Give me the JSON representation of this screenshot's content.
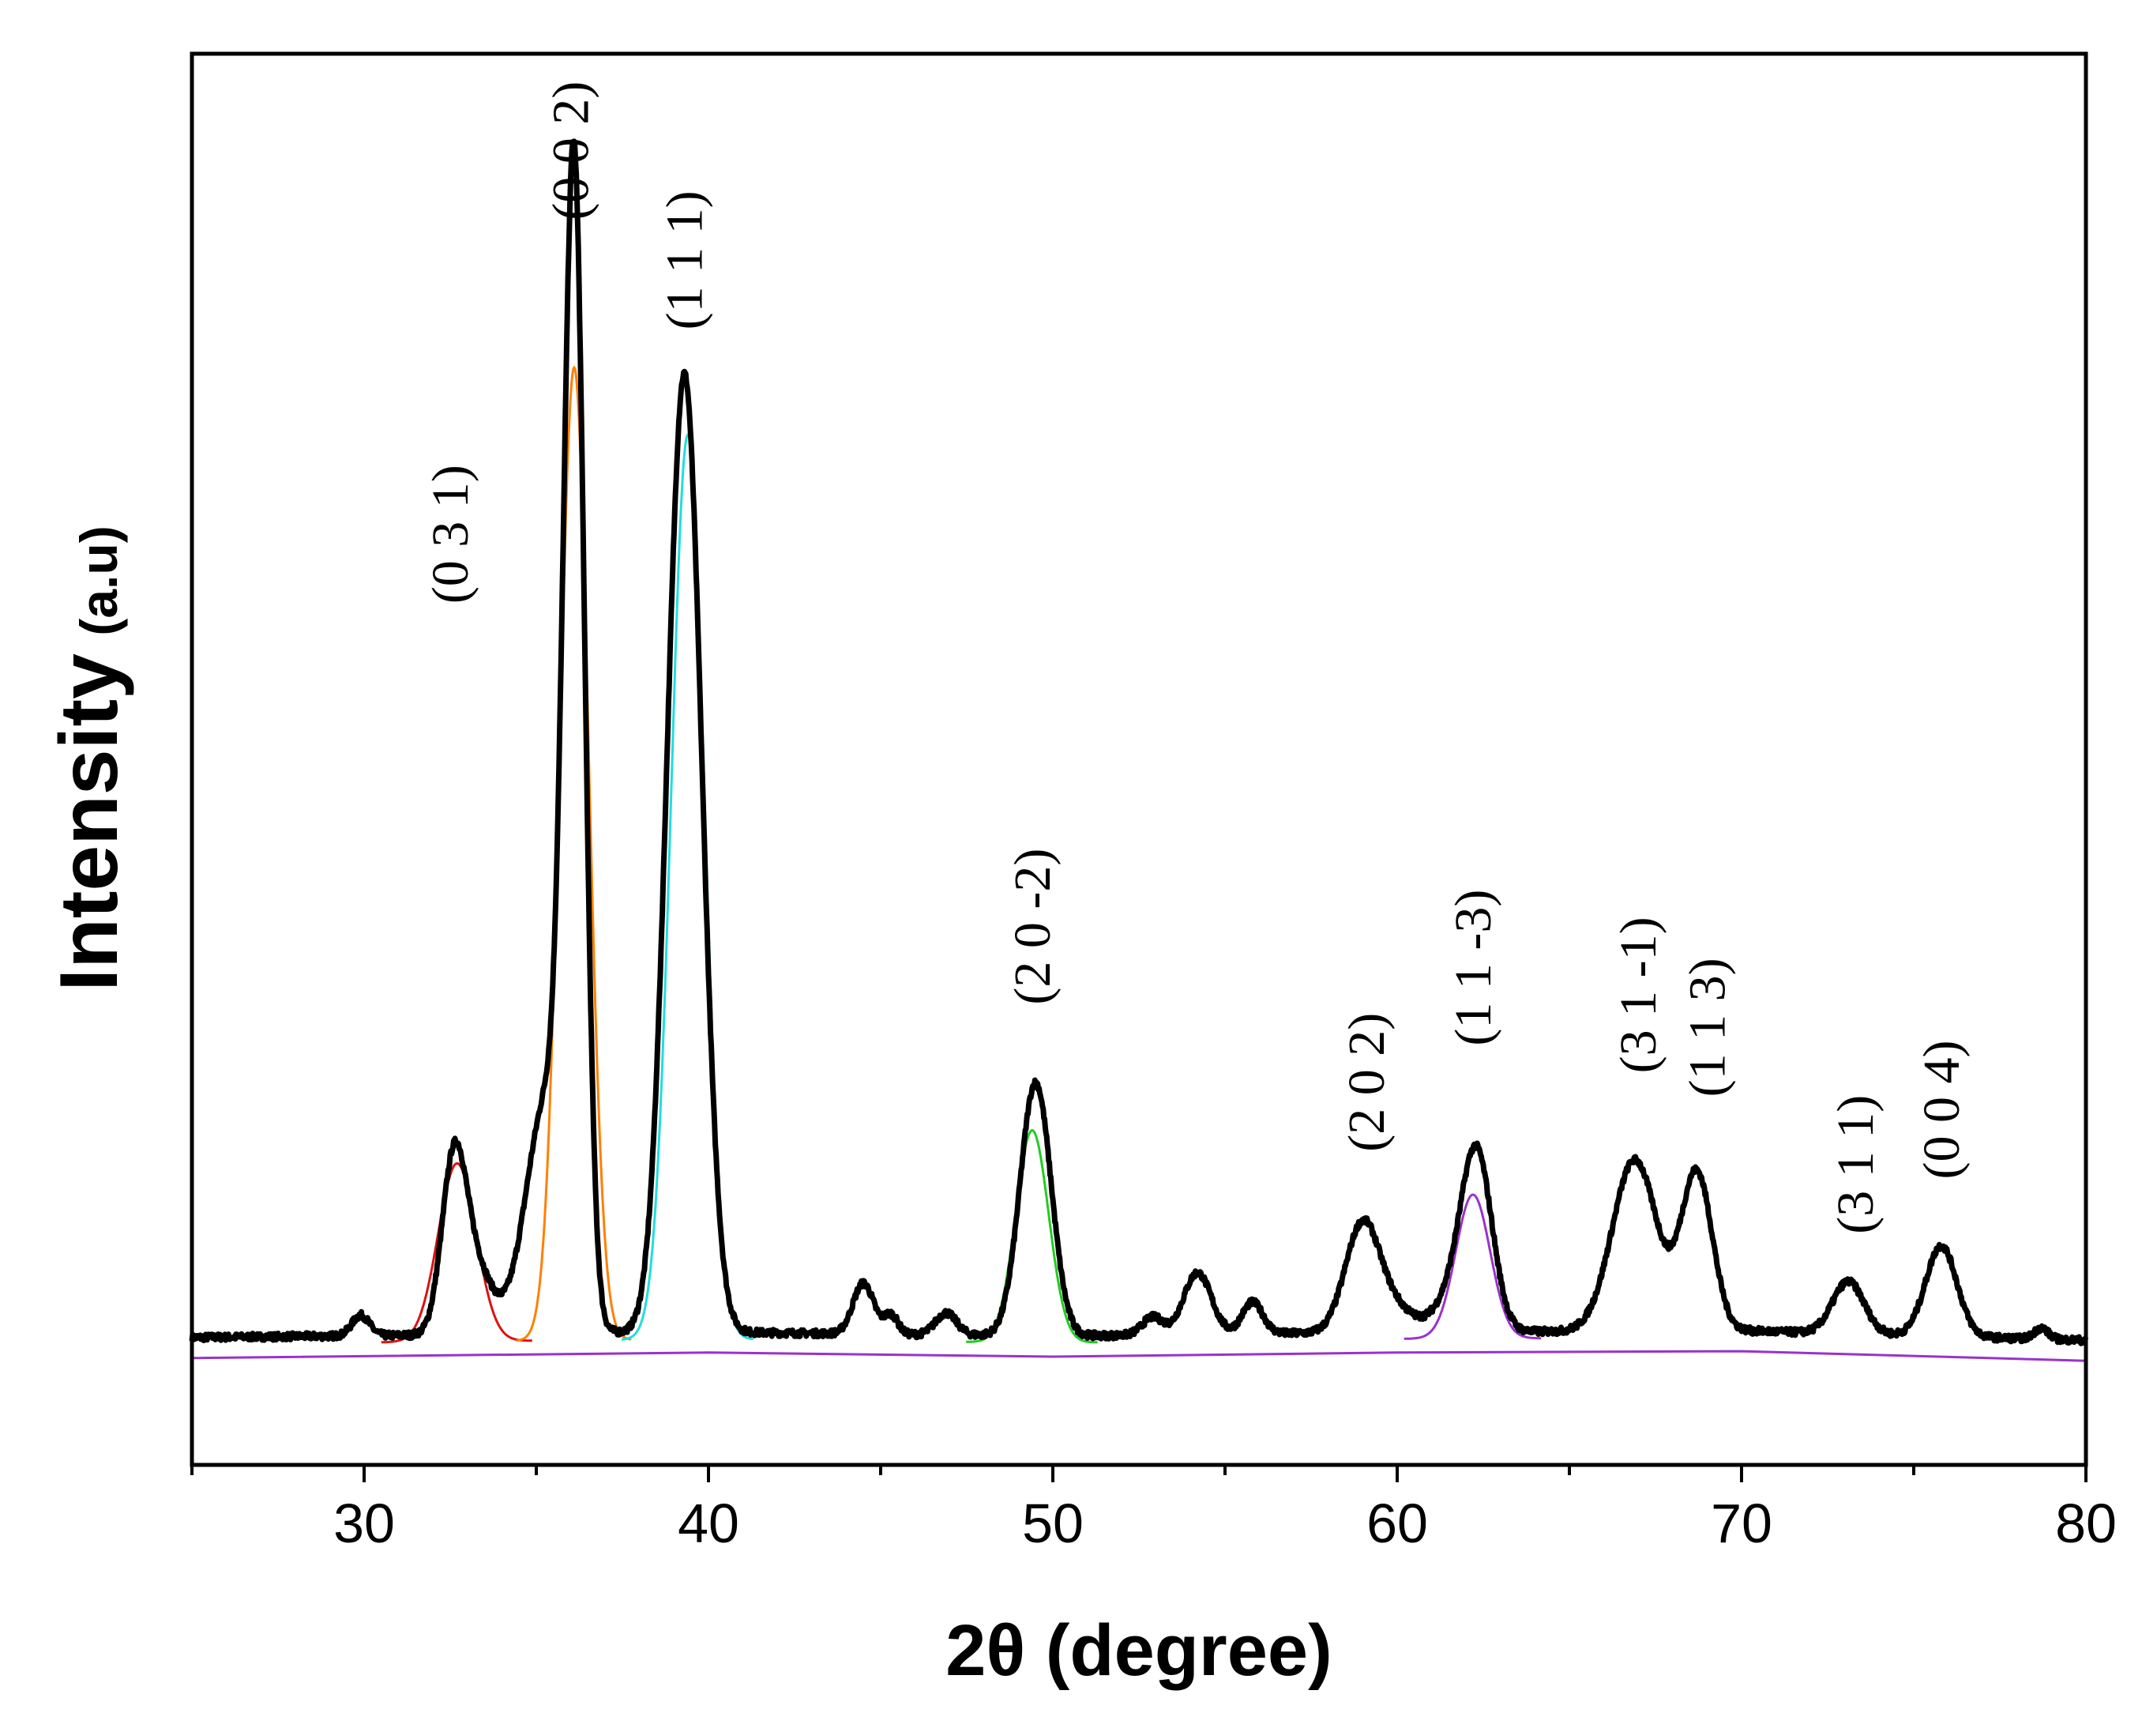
{
  "chart_data": {
    "type": "line",
    "title": "",
    "xlabel": "2θ (degree)",
    "ylabel_main": "Intensity",
    "ylabel_unit": "(a.u)",
    "xlim": [
      25,
      80
    ],
    "ylim": [
      -3,
      100
    ],
    "y_ticks_labeled": false,
    "grid": false,
    "legend": "none",
    "x_ticks": [
      30,
      40,
      50,
      60,
      70,
      80
    ],
    "x_tick_labels": [
      "30",
      "40",
      "50",
      "60",
      "70",
      "80"
    ],
    "x_minor_step": 5,
    "baseline": [
      [
        25,
        5.8
      ],
      [
        40,
        6.2
      ],
      [
        50,
        5.9
      ],
      [
        60,
        6.2
      ],
      [
        70,
        6.3
      ],
      [
        80,
        5.6
      ]
    ],
    "measured_peaks": [
      {
        "center": 29.9,
        "height": 1.5,
        "width": 0.25
      },
      {
        "center": 32.6,
        "height": 11.5,
        "width": 0.35
      },
      {
        "center": 33.2,
        "height": 5.0,
        "width": 0.5
      },
      {
        "center": 35.3,
        "height": 17.0,
        "width": 0.6
      },
      {
        "center": 36.1,
        "height": 80.0,
        "width": 0.3
      },
      {
        "center": 39.3,
        "height": 70.0,
        "width": 0.5
      },
      {
        "center": 44.5,
        "height": 3.7,
        "width": 0.3
      },
      {
        "center": 45.3,
        "height": 1.4,
        "width": 0.2
      },
      {
        "center": 46.9,
        "height": 1.6,
        "width": 0.3
      },
      {
        "center": 49.5,
        "height": 18.5,
        "width": 0.45
      },
      {
        "center": 52.9,
        "height": 1.3,
        "width": 0.3
      },
      {
        "center": 54.2,
        "height": 4.5,
        "width": 0.4
      },
      {
        "center": 55.8,
        "height": 2.3,
        "width": 0.3
      },
      {
        "center": 59.0,
        "height": 8.0,
        "width": 0.5
      },
      {
        "center": 60.0,
        "height": 1.5,
        "width": 0.5
      },
      {
        "center": 61.5,
        "height": 2.0,
        "width": 0.5
      },
      {
        "center": 62.3,
        "height": 13.0,
        "width": 0.45
      },
      {
        "center": 66.9,
        "height": 12.5,
        "width": 0.65
      },
      {
        "center": 68.7,
        "height": 11.5,
        "width": 0.45
      },
      {
        "center": 73.1,
        "height": 3.8,
        "width": 0.45
      },
      {
        "center": 75.8,
        "height": 6.6,
        "width": 0.45
      },
      {
        "center": 78.7,
        "height": 0.8,
        "width": 0.2
      }
    ],
    "fitted_peaks": [
      {
        "center": 32.7,
        "height": 13.0,
        "width": 0.55,
        "color": "#dd1111"
      },
      {
        "center": 36.1,
        "height": 71.0,
        "width": 0.42,
        "color": "#ff8000"
      },
      {
        "center": 39.4,
        "height": 66.0,
        "width": 0.48,
        "color": "#22dddd"
      },
      {
        "center": 49.4,
        "height": 15.5,
        "width": 0.48,
        "color": "#22cc22"
      },
      {
        "center": 62.2,
        "height": 10.5,
        "width": 0.5,
        "color": "#9933cc"
      }
    ],
    "fit_baseline_color": "#9933cc",
    "measured_color": "#000000",
    "peak_annotations": [
      {
        "label": "(0 3 1)",
        "x": 32.5,
        "y_top": 70
      },
      {
        "label": "(0 0 2)",
        "x": 36.0,
        "y_top": 98
      },
      {
        "label": "(1 1 1)",
        "x": 39.3,
        "y_top": 90
      },
      {
        "label": "(2 0 -2)",
        "x": 49.4,
        "y_top": 42
      },
      {
        "label": "(2 0 2)",
        "x": 59.1,
        "y_top": 30
      },
      {
        "label": "(1 1 -3)",
        "x": 62.2,
        "y_top": 39
      },
      {
        "label": "(3 1 -1)",
        "x": 67.0,
        "y_top": 37
      },
      {
        "label": "(1 1 3)",
        "x": 69.0,
        "y_top": 34
      },
      {
        "label": "(3 1 1)",
        "x": 73.3,
        "y_top": 24
      },
      {
        "label": "(0 0 4)",
        "x": 75.8,
        "y_top": 28
      }
    ]
  }
}
